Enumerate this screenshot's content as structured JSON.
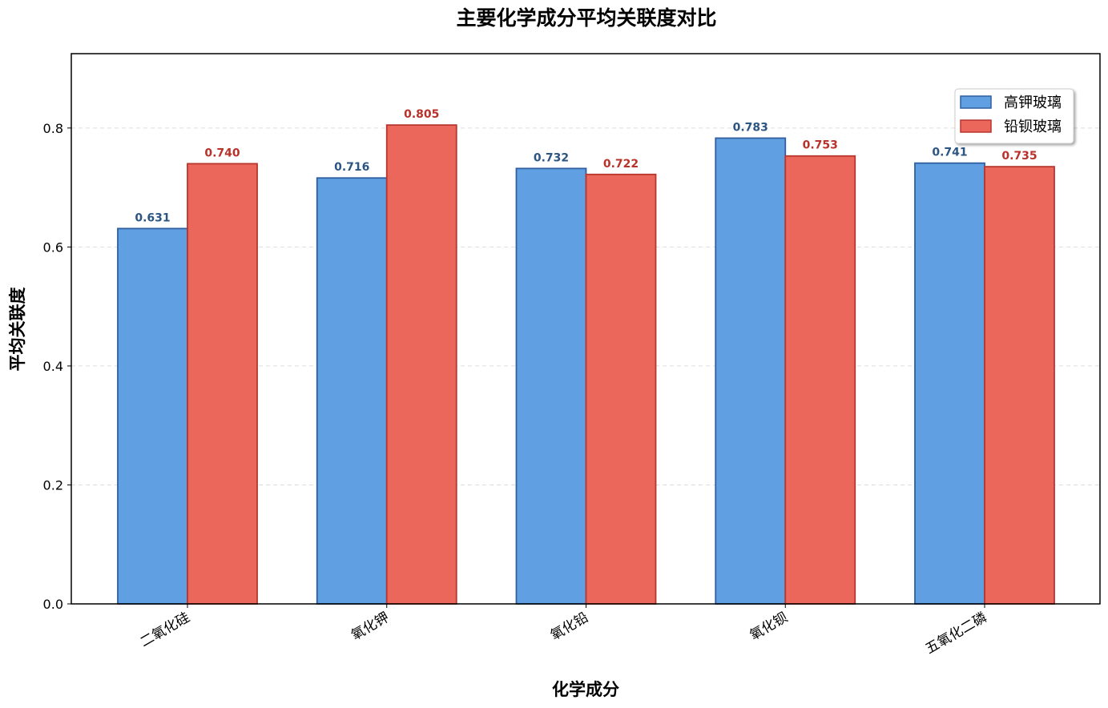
{
  "chart_data": {
    "type": "bar",
    "title": "主要化学成分平均关联度对比",
    "xlabel": "化学成分",
    "ylabel": "平均关联度",
    "categories": [
      "二氧化硅",
      "氧化钾",
      "氧化铅",
      "氧化钡",
      "五氧化二磷"
    ],
    "series": [
      {
        "name": "高钾玻璃",
        "values": [
          0.631,
          0.716,
          0.732,
          0.783,
          0.741
        ],
        "color": "#619fe3",
        "edge": "#2f5f9e",
        "label_color": "#2c5582"
      },
      {
        "name": "铅钡玻璃",
        "values": [
          0.74,
          0.805,
          0.722,
          0.753,
          0.735
        ],
        "color": "#ec675b",
        "edge": "#b7362e",
        "label_color": "#b8312a"
      }
    ],
    "ylim": [
      0,
      0.925
    ],
    "yticks": [
      "0.0",
      "0.2",
      "0.4",
      "0.6",
      "0.8"
    ],
    "grid": "y-dashed",
    "legend_position": "top-right"
  }
}
